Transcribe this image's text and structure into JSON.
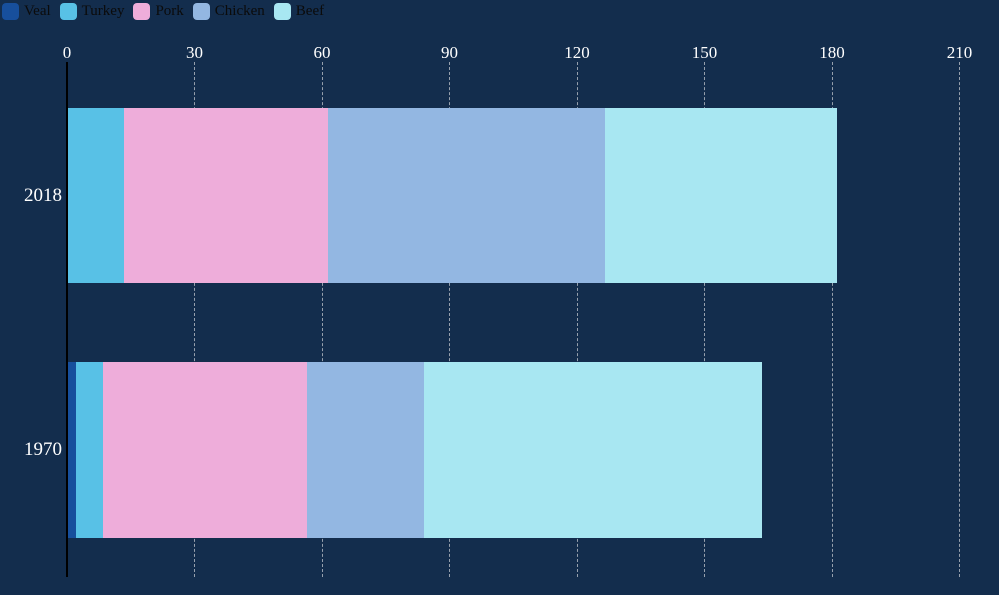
{
  "colors": {
    "background": "#132d4d",
    "grid": "#96a0ad",
    "axis_line": "#000000",
    "tick_label": "#ffffff",
    "legend_text": "#0b0b0b"
  },
  "legend": {
    "position": "top-left",
    "items": [
      {
        "label": "Veal",
        "color": "#174f9c"
      },
      {
        "label": "Turkey",
        "color": "#58c1e6"
      },
      {
        "label": "Pork",
        "color": "#eeadda"
      },
      {
        "label": "Chicken",
        "color": "#93b7e2"
      },
      {
        "label": "Beef",
        "color": "#a8e7f2"
      }
    ]
  },
  "x_axis": {
    "ticks": [
      0,
      30,
      60,
      90,
      120,
      150,
      180,
      210
    ]
  },
  "y_axis": {
    "categories": [
      "2018",
      "1970"
    ]
  },
  "chart_data": {
    "type": "bar",
    "orientation": "horizontal",
    "stacked": true,
    "title": "",
    "xlabel": "",
    "ylabel": "",
    "xlim": [
      0,
      210
    ],
    "grid": "dashed-vertical",
    "legend_position": "top-left",
    "categories": [
      "2018",
      "1970"
    ],
    "series": [
      {
        "name": "Veal",
        "color": "#174f9c",
        "values": [
          0.2,
          2.0
        ]
      },
      {
        "name": "Turkey",
        "color": "#58c1e6",
        "values": [
          13.1,
          6.4
        ]
      },
      {
        "name": "Pork",
        "color": "#eeadda",
        "values": [
          48.1,
          48.1
        ]
      },
      {
        "name": "Chicken",
        "color": "#93b7e2",
        "values": [
          65.2,
          27.4
        ]
      },
      {
        "name": "Beef",
        "color": "#a8e7f2",
        "values": [
          54.6,
          79.6
        ]
      }
    ],
    "totals": [
      181.2,
      163.5
    ]
  }
}
